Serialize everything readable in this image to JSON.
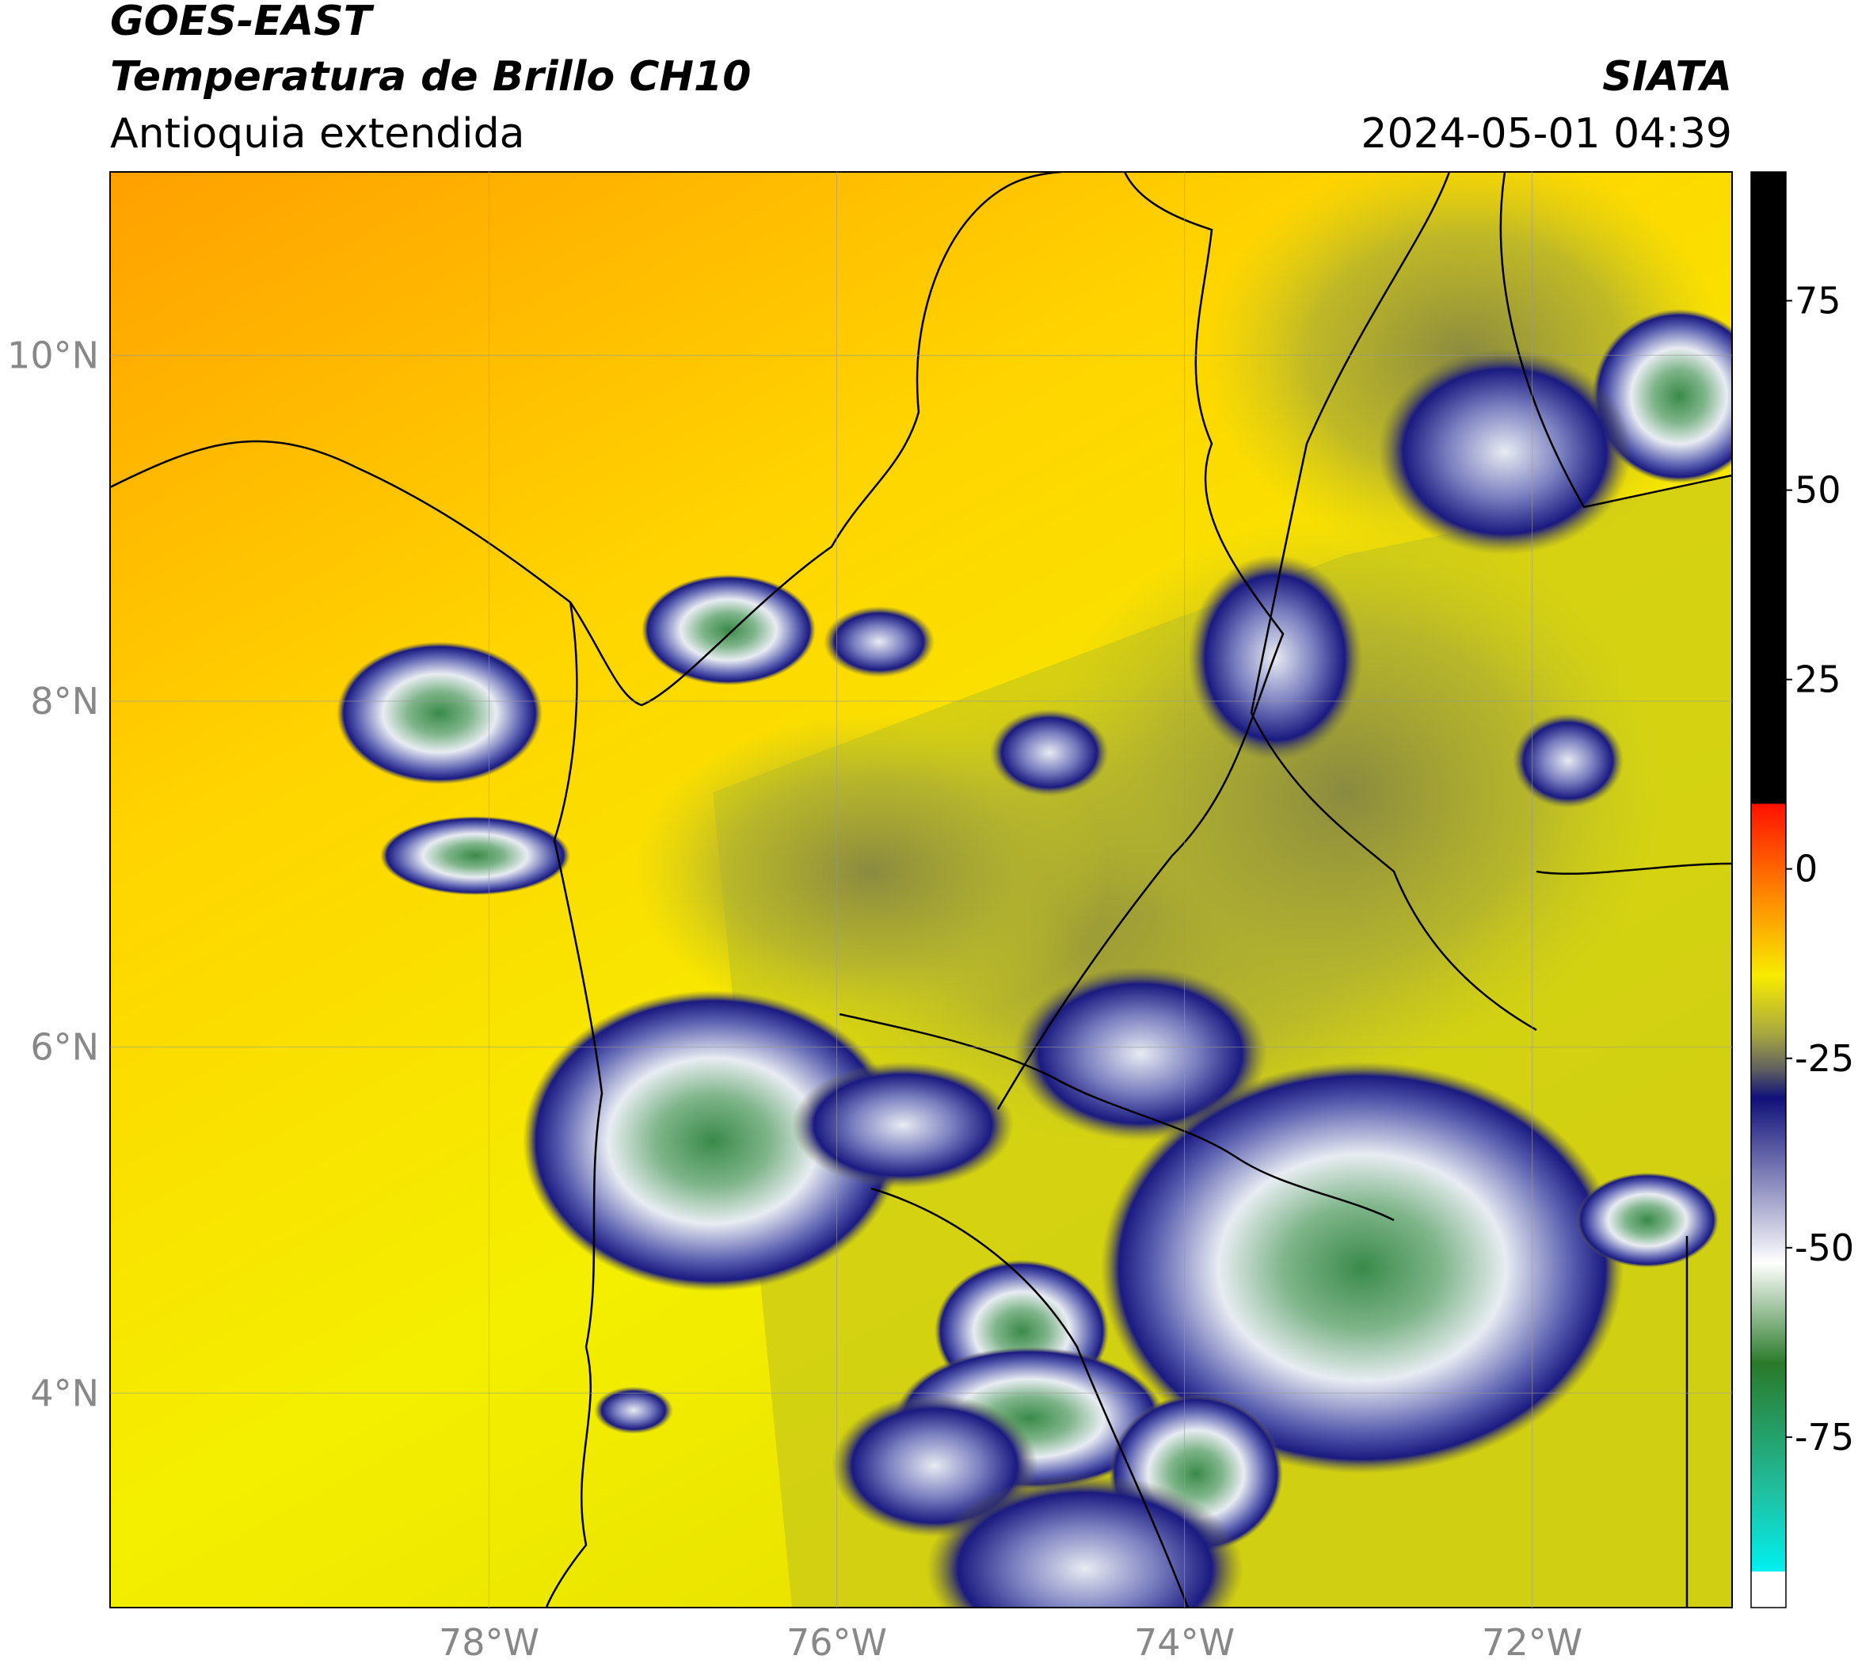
{
  "header": {
    "title": "GOES-EAST",
    "subtitle": "Temperatura de Brillo CH10",
    "region": "Antioquia extendida",
    "source": "SIATA",
    "datetime": "2024-05-01 04:39"
  },
  "map": {
    "xlim": [
      -80.18,
      -70.85
    ],
    "ylim": [
      2.76,
      11.06
    ],
    "xticks": [
      {
        "value": -78,
        "label": "78°W"
      },
      {
        "value": -76,
        "label": "76°W"
      },
      {
        "value": -74,
        "label": "74°W"
      },
      {
        "value": -72,
        "label": "72°W"
      }
    ],
    "yticks": [
      {
        "value": 10,
        "label": "10°N"
      },
      {
        "value": 8,
        "label": "8°N"
      },
      {
        "value": 6,
        "label": "6°N"
      },
      {
        "value": 4,
        "label": "4°N"
      }
    ],
    "grid": true
  },
  "colorbar": {
    "ylim": [
      -97.5,
      92
    ],
    "yticks": [
      75,
      50,
      25,
      0,
      -25,
      -50,
      -75
    ]
  }
}
